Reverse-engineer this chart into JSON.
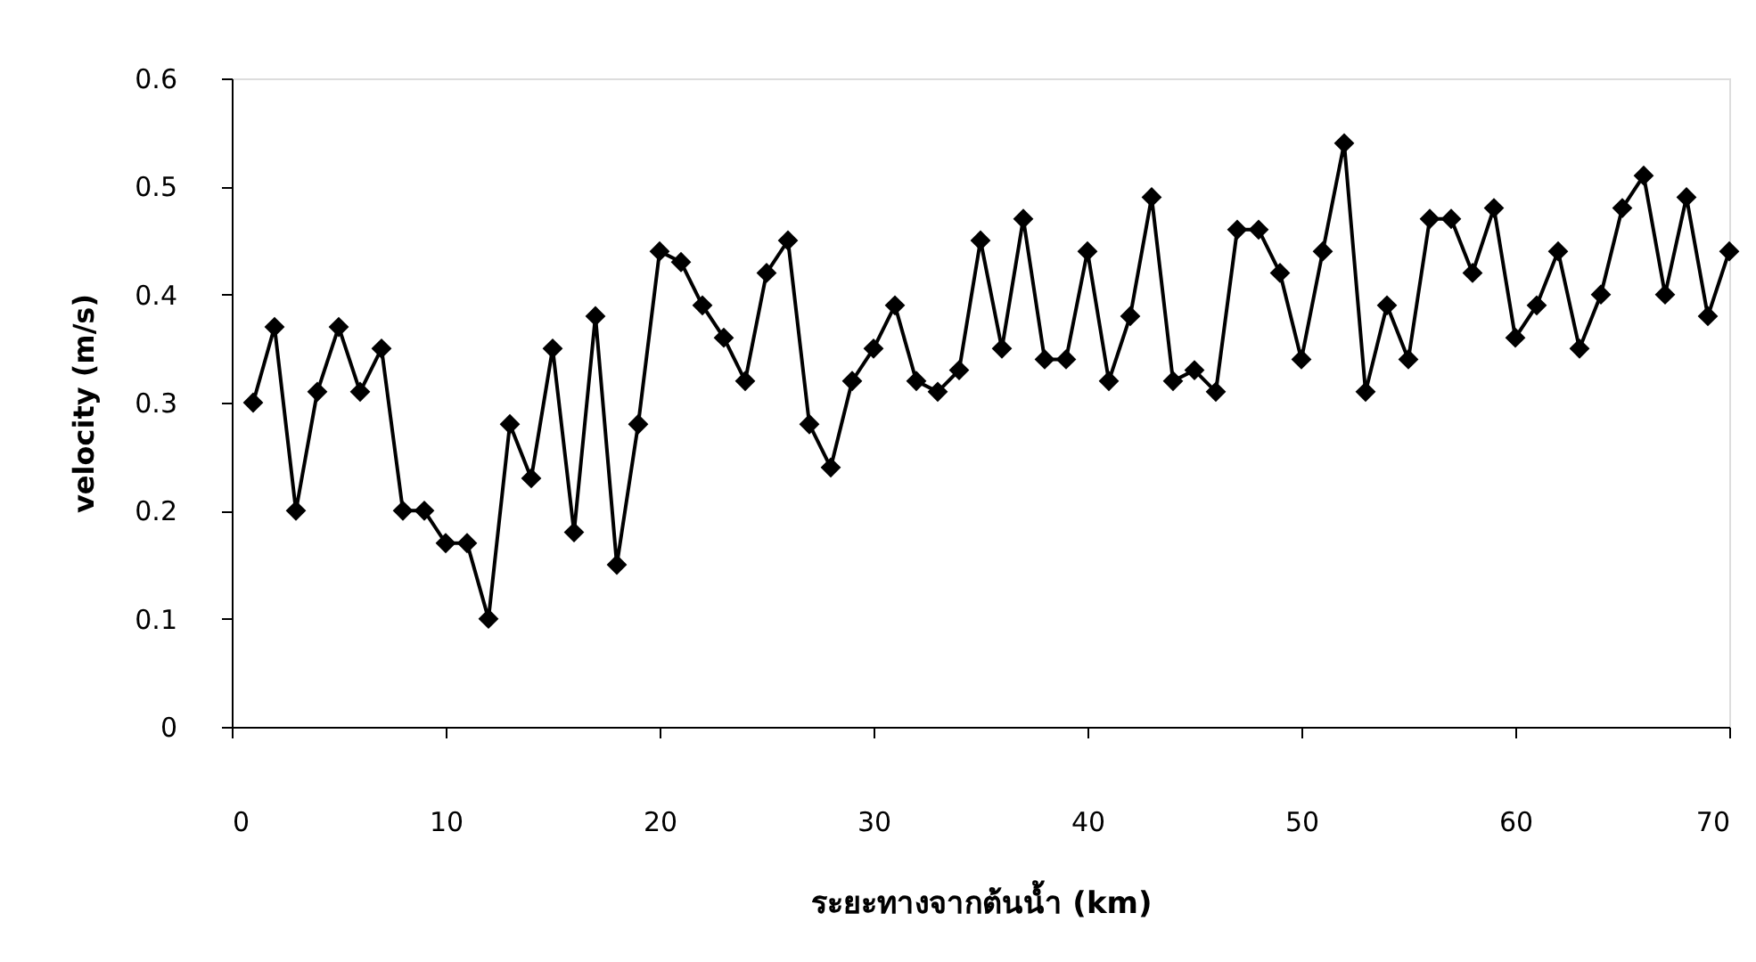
{
  "chart_data": {
    "type": "line",
    "xlabel": "ระยะทางจากต้นน้ำ (km)",
    "ylabel": "velocity (m/s)",
    "x": [
      1,
      2,
      3,
      4,
      5,
      6,
      7,
      8,
      9,
      10,
      11,
      12,
      13,
      14,
      15,
      16,
      17,
      18,
      19,
      20,
      21,
      22,
      23,
      24,
      25,
      26,
      27,
      28,
      29,
      30,
      31,
      32,
      33,
      34,
      35,
      36,
      37,
      38,
      39,
      40,
      41,
      42,
      43,
      44,
      45,
      46,
      47,
      48,
      49,
      50,
      51,
      52,
      53,
      54,
      55,
      56,
      57,
      58,
      59,
      60,
      61,
      62,
      63,
      64,
      65,
      66,
      67,
      68,
      69,
      70
    ],
    "series": [
      {
        "color": "#000000",
        "values": [
          0.3,
          0.37,
          0.2,
          0.31,
          0.37,
          0.31,
          0.35,
          0.2,
          0.2,
          0.17,
          0.17,
          0.1,
          0.28,
          0.23,
          0.35,
          0.18,
          0.38,
          0.15,
          0.28,
          0.44,
          0.43,
          0.39,
          0.36,
          0.32,
          0.42,
          0.45,
          0.28,
          0.24,
          0.32,
          0.35,
          0.39,
          0.32,
          0.31,
          0.33,
          0.45,
          0.35,
          0.47,
          0.34,
          0.34,
          0.44,
          0.32,
          0.38,
          0.49,
          0.32,
          0.33,
          0.31,
          0.46,
          0.46,
          0.42,
          0.34,
          0.44,
          0.54,
          0.31,
          0.39,
          0.34,
          0.47,
          0.47,
          0.42,
          0.48,
          0.36,
          0.39,
          0.44,
          0.35,
          0.4,
          0.48,
          0.51,
          0.4,
          0.49,
          0.38,
          0.44
        ]
      }
    ],
    "xlim": [
      0,
      70
    ],
    "xticks": [
      0,
      10,
      20,
      30,
      40,
      50,
      60,
      70
    ],
    "ylim": [
      0,
      0.6
    ],
    "yticks": [
      0,
      0.1,
      0.2,
      0.3,
      0.4,
      0.5,
      0.6
    ],
    "grid": false,
    "legend": false,
    "marker": "diamond",
    "line_style": "solid"
  }
}
